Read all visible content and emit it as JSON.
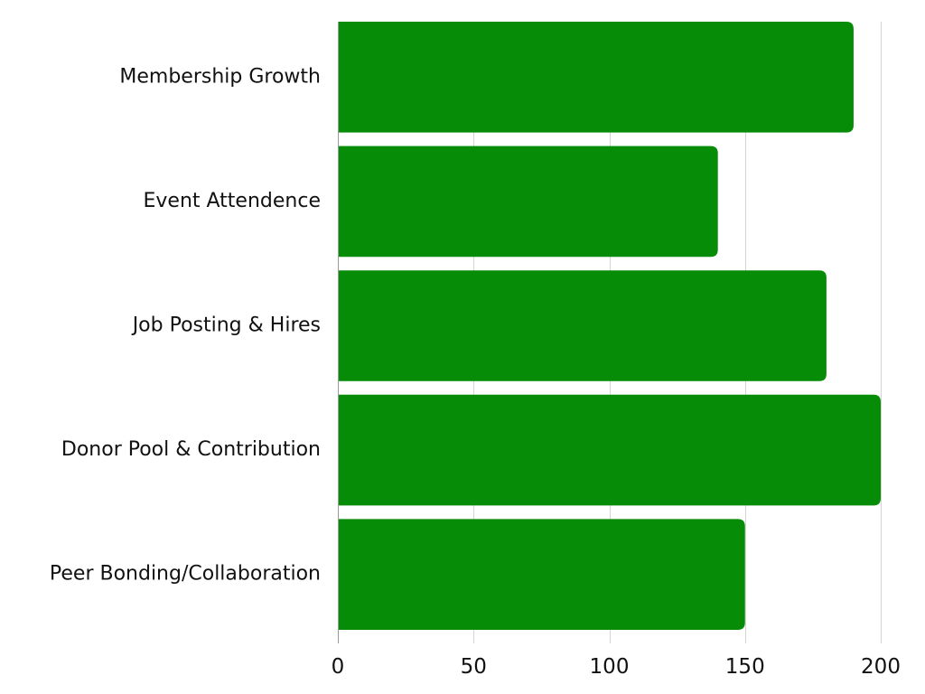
{
  "chart_data": {
    "type": "bar",
    "orientation": "horizontal",
    "categories": [
      "Membership Growth",
      "Event Attendence",
      "Job Posting & Hires",
      "Donor Pool & Contribution",
      "Peer Bonding/Collaboration"
    ],
    "values": [
      190,
      140,
      180,
      200,
      150
    ],
    "xlim": [
      0,
      200
    ],
    "x_ticks": [
      0,
      50,
      100,
      150,
      200
    ],
    "grid": true,
    "legend": "none",
    "bar_color": "#078c07"
  }
}
